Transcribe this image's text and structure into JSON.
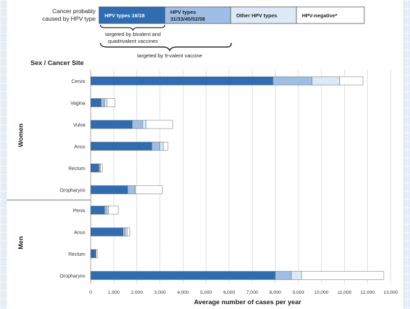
{
  "legend": {
    "title_line1": "Cancer probably",
    "title_line2": "caused by HPV type",
    "items": [
      {
        "label": "HPV types 16/18",
        "color": "#2e6db3",
        "text_color": "#ffffff"
      },
      {
        "label_line1": "HPV types",
        "label_line2": "31/33/45/52/58",
        "color": "#9dbfe6",
        "text_color": "#1f1f1f"
      },
      {
        "label": "Other HPV types",
        "color": "#dce9f6",
        "text_color": "#1f1f1f"
      },
      {
        "label": "HPV-negative*",
        "color": "#ffffff",
        "text_color": "#1f1f1f"
      }
    ],
    "bivalent_note_line1": "targeted by bivalent and",
    "bivalent_note_line2": "quadrivalent vaccines",
    "ninevalent_note": "targeted by 9-valent vaccine"
  },
  "chart_data": {
    "type": "bar",
    "orientation": "horizontal",
    "stacked": true,
    "row_header": "Sex / Cancer Site",
    "xlabel": "Average number of cases per year",
    "xlim": [
      0,
      13000
    ],
    "xticks": [
      "0",
      "1,000",
      "2,000",
      "3,000",
      "4,000",
      "5,000",
      "6,000",
      "7,000",
      "8,000",
      "9,000",
      "10,000",
      "11,000",
      "12,000",
      "13,000"
    ],
    "grid": true,
    "groups": [
      {
        "name": "Women",
        "categories": [
          "Cervix",
          "Vagina",
          "Vulva",
          "Anus",
          "Rectum",
          "Oropharynx"
        ]
      },
      {
        "name": "Men",
        "categories": [
          "Penis",
          "Anus",
          "Rectum",
          "Oropharynx"
        ]
      }
    ],
    "series": [
      {
        "name": "HPV types 16/18",
        "color": "#2e6db3",
        "values": [
          7900,
          450,
          1800,
          2650,
          350,
          1600,
          600,
          1400,
          200,
          8000
        ]
      },
      {
        "name": "HPV types 31/33/45/52/58",
        "color": "#9dbfe6",
        "values": [
          1700,
          150,
          450,
          350,
          50,
          300,
          100,
          100,
          20,
          700
        ]
      },
      {
        "name": "Other HPV types",
        "color": "#dce9f6",
        "values": [
          1200,
          100,
          150,
          150,
          10,
          50,
          70,
          80,
          10,
          450
        ]
      },
      {
        "name": "HPV-negative*",
        "color": "#ffffff",
        "values": [
          1000,
          350,
          1150,
          200,
          90,
          1150,
          430,
          120,
          60,
          3550
        ]
      }
    ]
  }
}
